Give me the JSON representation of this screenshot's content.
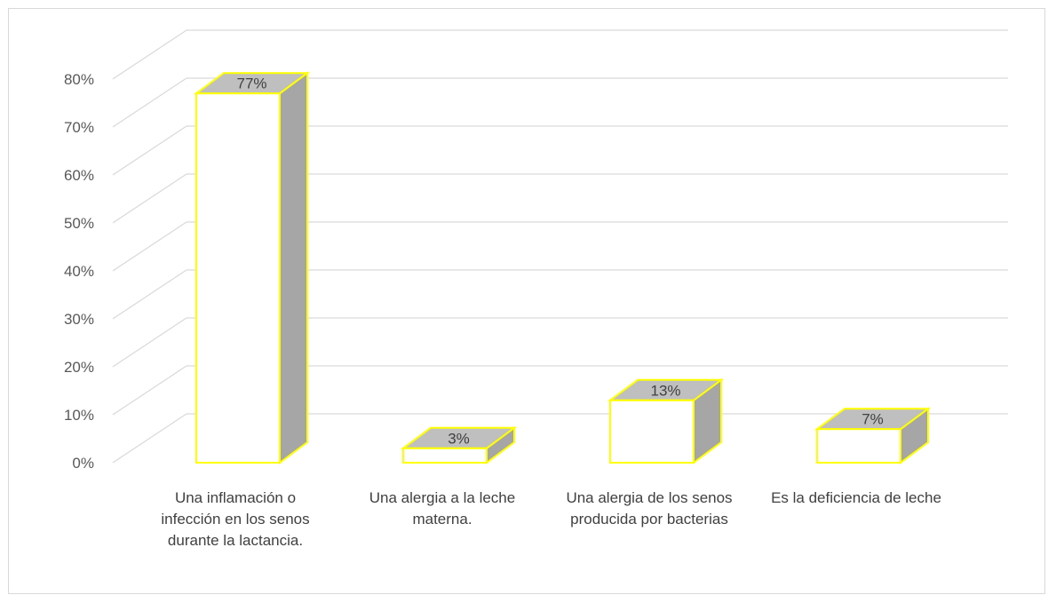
{
  "chart_data": {
    "type": "bar",
    "style": "3d-column",
    "categories": [
      "Una inflamación o infección en los senos durante la lactancia.",
      "Una alergia a la leche materna.",
      "Una alergia de los senos producida por bacterias",
      "Es la deficiencia de leche"
    ],
    "values": [
      77,
      3,
      13,
      7
    ],
    "data_labels": [
      "77%",
      "3%",
      "13%",
      "7%"
    ],
    "y_ticks": [
      "0%",
      "10%",
      "20%",
      "30%",
      "40%",
      "50%",
      "60%",
      "70%",
      "80%"
    ],
    "ylim": [
      0,
      80
    ],
    "grid": true,
    "legend": "none",
    "colors": {
      "bar_front": "#ffffff",
      "bar_top": "#bfbfbf",
      "bar_side": "#a6a6a6",
      "bar_outline": "#ffff00",
      "gridline": "#d9d9d9"
    }
  }
}
